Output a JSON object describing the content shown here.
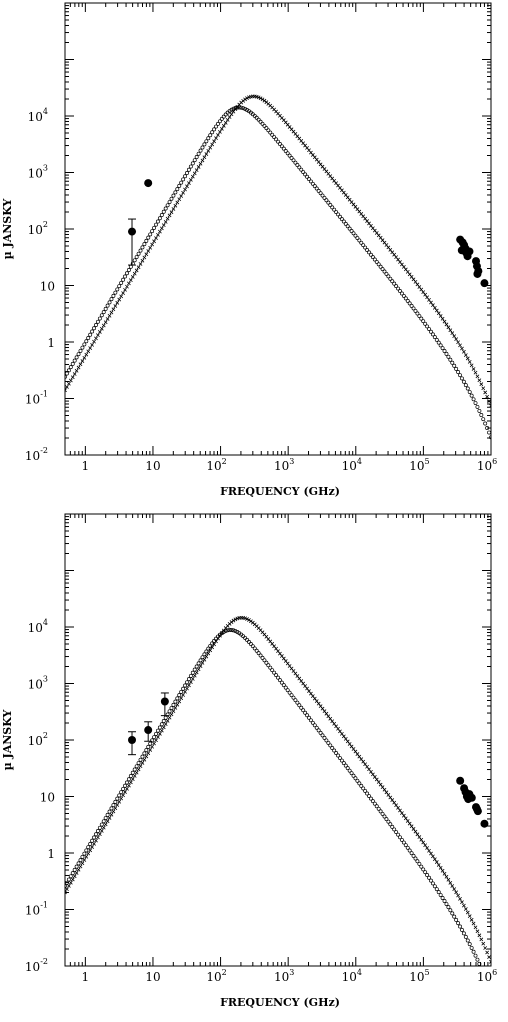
{
  "chart_data": [
    {
      "type": "scatter",
      "xlabel": "FREQUENCY (GHz)",
      "ylabel": "µ JANSKY",
      "xscale": "log",
      "yscale": "log",
      "xlim": [
        0.5,
        1000000
      ],
      "ylim": [
        0.01,
        1000000
      ],
      "x_ticks": [
        {
          "value": 1,
          "base": "1",
          "exp": ""
        },
        {
          "value": 10,
          "base": "10",
          "exp": ""
        },
        {
          "value": 100,
          "base": "10",
          "exp": "2"
        },
        {
          "value": 1000,
          "base": "10",
          "exp": "3"
        },
        {
          "value": 10000,
          "base": "10",
          "exp": "4"
        },
        {
          "value": 100000,
          "base": "10",
          "exp": "5"
        },
        {
          "value": 1000000,
          "base": "10",
          "exp": "6"
        }
      ],
      "y_ticks": [
        {
          "value": 0.01,
          "base": "10",
          "exp": "-2"
        },
        {
          "value": 0.1,
          "base": "10",
          "exp": "-1"
        },
        {
          "value": 1,
          "base": "1",
          "exp": ""
        },
        {
          "value": 10,
          "base": "10",
          "exp": ""
        },
        {
          "value": 100,
          "base": "10",
          "exp": "2"
        },
        {
          "value": 1000,
          "base": "10",
          "exp": "3"
        },
        {
          "value": 10000,
          "base": "10",
          "exp": "4"
        }
      ],
      "series": [
        {
          "style": "crosses",
          "curve": {
            "amp": 22000,
            "peak": 280,
            "rise": 2.0,
            "fall": 1.45,
            "cut": 700000
          }
        },
        {
          "style": "circles",
          "curve": {
            "amp": 14000,
            "peak": 170,
            "rise": 2.0,
            "fall": 1.45,
            "cut": 650000
          }
        },
        {
          "style": "data",
          "points": [
            {
              "x": 4.9,
              "y": 90,
              "ylo": 23,
              "yhi": 150
            },
            {
              "x": 8.5,
              "y": 650
            },
            {
              "x": 350000,
              "y": 65
            },
            {
              "x": 380000,
              "y": 58
            },
            {
              "x": 400000,
              "y": 52
            },
            {
              "x": 420000,
              "y": 45
            },
            {
              "x": 430000,
              "y": 38
            },
            {
              "x": 450000,
              "y": 33
            },
            {
              "x": 370000,
              "y": 42
            },
            {
              "x": 480000,
              "y": 40
            },
            {
              "x": 600000,
              "y": 27
            },
            {
              "x": 620000,
              "y": 22
            },
            {
              "x": 650000,
              "y": 18
            },
            {
              "x": 630000,
              "y": 16
            },
            {
              "x": 800000,
              "y": 11
            }
          ]
        }
      ]
    },
    {
      "type": "scatter",
      "xlabel": "FREQUENCY (GHz)",
      "ylabel": "µ JANSKY",
      "xscale": "log",
      "yscale": "log",
      "xlim": [
        0.5,
        1000000
      ],
      "ylim": [
        0.01,
        1000000
      ],
      "x_ticks": [
        {
          "value": 1,
          "base": "1",
          "exp": ""
        },
        {
          "value": 10,
          "base": "10",
          "exp": ""
        },
        {
          "value": 100,
          "base": "10",
          "exp": "2"
        },
        {
          "value": 1000,
          "base": "10",
          "exp": "3"
        },
        {
          "value": 10000,
          "base": "10",
          "exp": "4"
        },
        {
          "value": 100000,
          "base": "10",
          "exp": "5"
        },
        {
          "value": 1000000,
          "base": "10",
          "exp": "6"
        }
      ],
      "y_ticks": [
        {
          "value": 0.01,
          "base": "10",
          "exp": "-2"
        },
        {
          "value": 0.1,
          "base": "10",
          "exp": "-1"
        },
        {
          "value": 1,
          "base": "1",
          "exp": ""
        },
        {
          "value": 10,
          "base": "10",
          "exp": ""
        },
        {
          "value": 100,
          "base": "10",
          "exp": "2"
        },
        {
          "value": 1000,
          "base": "10",
          "exp": "3"
        },
        {
          "value": 10000,
          "base": "10",
          "exp": "4"
        }
      ],
      "series": [
        {
          "style": "crosses",
          "curve": {
            "amp": 14500,
            "peak": 190,
            "rise": 2.0,
            "fall": 1.55,
            "cut": 700000
          }
        },
        {
          "style": "circles",
          "curve": {
            "amp": 8800,
            "peak": 130,
            "rise": 2.0,
            "fall": 1.55,
            "cut": 650000
          }
        },
        {
          "style": "data",
          "points": [
            {
              "x": 4.9,
              "y": 100,
              "ylo": 55,
              "yhi": 140
            },
            {
              "x": 8.5,
              "y": 150,
              "ylo": 95,
              "yhi": 210
            },
            {
              "x": 15,
              "y": 480,
              "ylo": 270,
              "yhi": 680
            },
            {
              "x": 350000,
              "y": 19
            },
            {
              "x": 400000,
              "y": 14
            },
            {
              "x": 420000,
              "y": 12
            },
            {
              "x": 440000,
              "y": 10
            },
            {
              "x": 460000,
              "y": 9
            },
            {
              "x": 480000,
              "y": 11
            },
            {
              "x": 520000,
              "y": 9.5
            },
            {
              "x": 600000,
              "y": 6.5
            },
            {
              "x": 620000,
              "y": 6
            },
            {
              "x": 640000,
              "y": 5.5
            },
            {
              "x": 800000,
              "y": 3.3
            }
          ]
        }
      ]
    }
  ]
}
